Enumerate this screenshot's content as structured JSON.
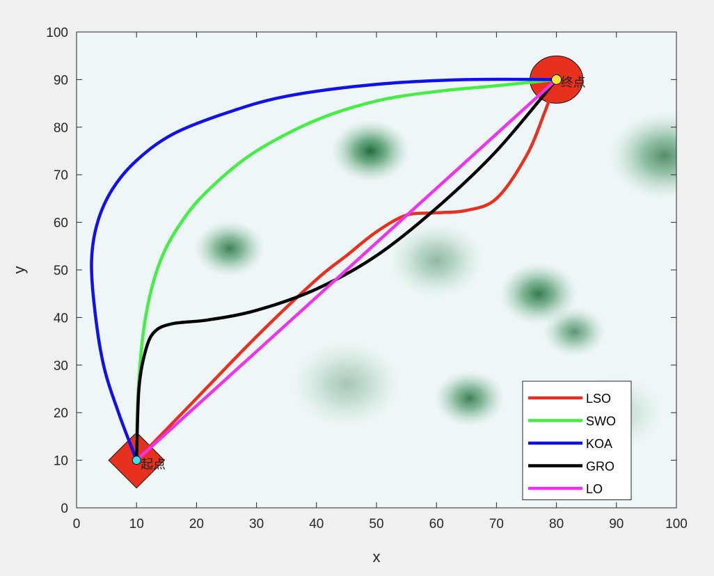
{
  "chart_data": {
    "type": "line",
    "xlabel": "x",
    "ylabel": "y",
    "xlim": [
      0,
      100
    ],
    "ylim": [
      0,
      100
    ],
    "xticks": [
      "0",
      "10",
      "20",
      "30",
      "40",
      "50",
      "60",
      "70",
      "80",
      "90",
      "100"
    ],
    "yticks": [
      "0",
      "10",
      "20",
      "30",
      "40",
      "50",
      "60",
      "70",
      "80",
      "90",
      "100"
    ],
    "grid": false,
    "legend_position": "bottom-right",
    "background": "threat map (green intensity field)",
    "threats": [
      {
        "x": 49,
        "y": 75,
        "r": 5,
        "strength": 1.0
      },
      {
        "x": 25.5,
        "y": 54.5,
        "r": 4.5,
        "strength": 0.85
      },
      {
        "x": 77,
        "y": 45,
        "r": 5,
        "strength": 0.9
      },
      {
        "x": 83,
        "y": 37,
        "r": 4,
        "strength": 0.7
      },
      {
        "x": 65.5,
        "y": 23,
        "r": 4.5,
        "strength": 0.85
      },
      {
        "x": 60,
        "y": 52,
        "r": 6,
        "strength": 0.45
      },
      {
        "x": 45,
        "y": 26,
        "r": 7,
        "strength": 0.35
      },
      {
        "x": 98,
        "y": 74,
        "r": 7,
        "strength": 0.75
      },
      {
        "x": 90,
        "y": 20,
        "r": 6,
        "strength": 0.25
      }
    ],
    "start": {
      "x": 10,
      "y": 10,
      "label": "起点"
    },
    "goal": {
      "x": 80,
      "y": 90,
      "label": "终点"
    },
    "series": [
      {
        "name": "LSO",
        "color": "#e8301e",
        "x": [
          10,
          20,
          30,
          40,
          45,
          50,
          55,
          60,
          65,
          70,
          75,
          78,
          80
        ],
        "y": [
          10,
          23,
          36,
          48,
          53,
          58,
          61.5,
          62,
          62.5,
          65,
          74,
          83,
          90
        ]
      },
      {
        "name": "SWO",
        "color": "#44ee44",
        "x": [
          10,
          10.3,
          11.5,
          14,
          18,
          23,
          30,
          40,
          50,
          60,
          70,
          80
        ],
        "y": [
          10,
          25,
          40,
          52,
          61,
          68,
          75,
          81.5,
          85.5,
          87.5,
          88.7,
          90
        ]
      },
      {
        "name": "KOA",
        "color": "#1010ee",
        "x": [
          10,
          7,
          4.5,
          3,
          2.5,
          3.5,
          6,
          10,
          16,
          25,
          35,
          50,
          65,
          80
        ],
        "y": [
          10,
          20,
          30,
          42,
          52,
          60,
          67,
          73,
          78.5,
          83,
          86.5,
          89,
          90,
          90
        ]
      },
      {
        "name": "GRO",
        "color": "#000000",
        "x": [
          10,
          10.4,
          11.5,
          13,
          16,
          22,
          30,
          40,
          50,
          60,
          70,
          80
        ],
        "y": [
          10,
          25,
          33,
          37,
          38.7,
          39.5,
          41.5,
          46,
          53,
          63,
          75,
          90
        ]
      },
      {
        "name": "LO",
        "color": "#ee33ee",
        "x": [
          10,
          80
        ],
        "y": [
          10,
          90
        ]
      }
    ]
  }
}
